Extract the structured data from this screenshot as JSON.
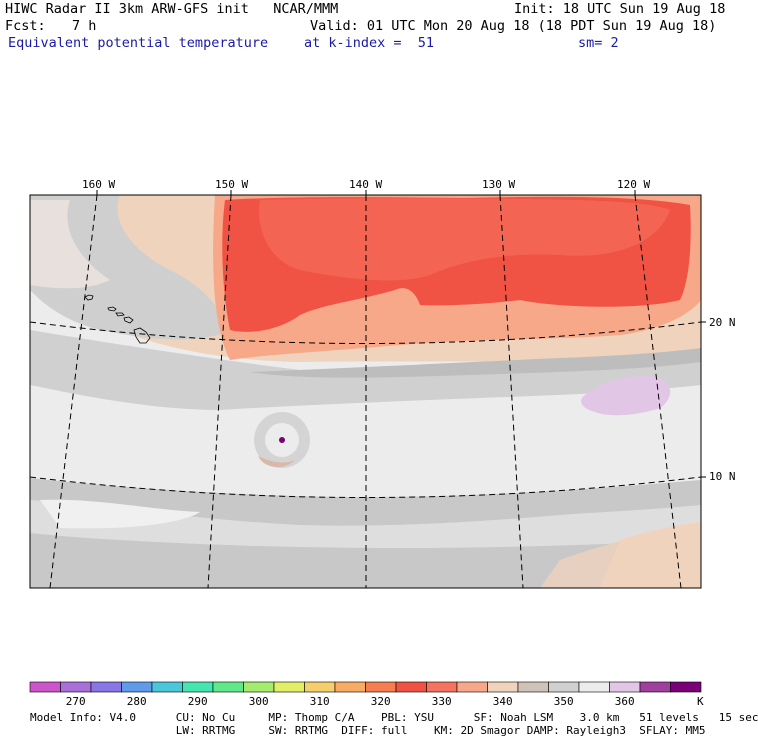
{
  "header": {
    "title": "HIWC Radar II 3km ARW-GFS init   NCAR/MMM",
    "init": "Init: 18 UTC Sun 19 Aug 18",
    "fcst_label": "Fcst:",
    "fcst_value": "7 h",
    "valid": "Valid: 01 UTC Mon 20 Aug 18 (18 PDT Sun 19 Aug 18)",
    "field": "Equivalent potential temperature",
    "kindex": "at k-index =  51",
    "smooth": "sm= 2"
  },
  "map": {
    "lon_labels": [
      "160 W",
      "150 W",
      "140 W",
      "130 W",
      "120 W"
    ],
    "lat_labels": [
      "20 N",
      "10 N"
    ]
  },
  "colorbar": {
    "colors": [
      "#cc55cc",
      "#aa6fd9",
      "#8876e6",
      "#5f9be9",
      "#4bc7d9",
      "#44e5b0",
      "#61e88a",
      "#a4ec6e",
      "#e1ef67",
      "#f5cf6e",
      "#f7ab63",
      "#f57e50",
      "#f05243",
      "#f5735e",
      "#f6a888",
      "#f0d3bd",
      "#cfc3b8",
      "#d0d0d0",
      "#ececec",
      "#e2c6e6",
      "#a0409e",
      "#7a0078"
    ],
    "labels": [
      "270",
      "280",
      "290",
      "300",
      "310",
      "320",
      "330",
      "340",
      "350",
      "360",
      "K"
    ]
  },
  "footer": {
    "line1": "Model Info: V4.0      CU: No Cu     MP: Thomp C/A    PBL: YSU      SF: Noah LSM    3.0 km   51 levels   15 sec",
    "line2": "                      LW: RRTMG     SW: RRTMG  DIFF: full    KM: 2D Smagor DAMP: Rayleigh3  SFLAY: MM5"
  }
}
